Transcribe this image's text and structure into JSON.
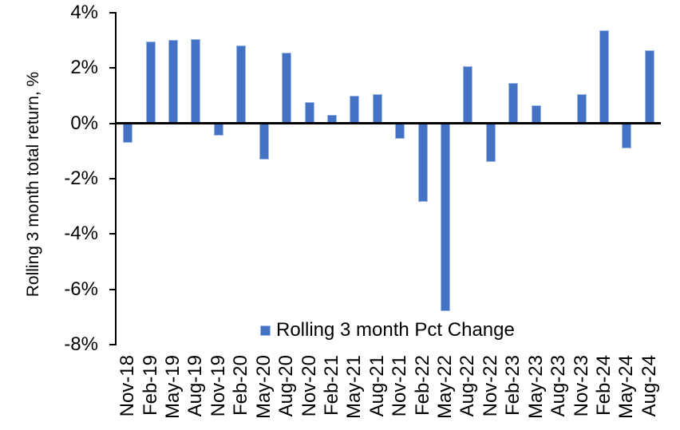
{
  "chart_data": {
    "type": "bar",
    "title": "",
    "ylabel": "Rolling 3 month total return, %",
    "xlabel": "",
    "legend_label": "Rolling 3 month Pct Change",
    "legend_position": "bottom-center-inside",
    "grid": false,
    "ylim": [
      -8,
      4
    ],
    "yticks": [
      4,
      2,
      0,
      -2,
      -4,
      -6,
      -8
    ],
    "ytick_suffix": "%",
    "categories": [
      "Nov-18",
      "Feb-19",
      "May-19",
      "Aug-19",
      "Nov-19",
      "Feb-20",
      "May-20",
      "Aug-20",
      "Nov-20",
      "Feb-21",
      "May-21",
      "Aug-21",
      "Nov-21",
      "Feb-22",
      "May-22",
      "Aug-22",
      "Nov-22",
      "Feb-23",
      "May-23",
      "Aug-23",
      "Nov-23",
      "Feb-24",
      "May-24",
      "Aug-24"
    ],
    "values": [
      -0.7,
      2.95,
      3.0,
      3.05,
      -0.45,
      2.8,
      -1.3,
      2.55,
      0.75,
      0.3,
      1.0,
      1.05,
      -0.55,
      -2.85,
      -6.8,
      2.05,
      -1.4,
      1.45,
      0.65,
      0.0,
      1.05,
      3.35,
      -0.9,
      2.65
    ],
    "colors": {
      "bar_fill": "#4472C4",
      "bar_border": "#9DB8E4",
      "axis": "#000000",
      "text": "#000000",
      "background": "#FFFFFF"
    }
  }
}
